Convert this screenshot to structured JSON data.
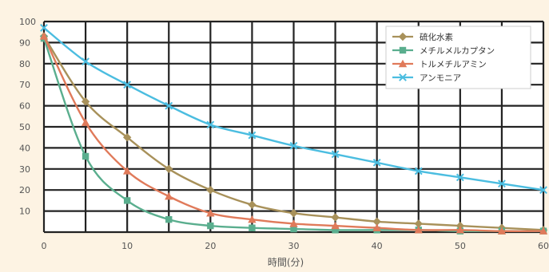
{
  "chart_data": {
    "type": "line",
    "title": "",
    "xlabel": "時間(分)",
    "ylabel": "",
    "xlim": [
      0,
      60
    ],
    "ylim": [
      0,
      100
    ],
    "xticks": [
      0,
      10,
      20,
      30,
      40,
      50,
      60
    ],
    "yticks": [
      10,
      20,
      30,
      40,
      50,
      60,
      70,
      80,
      90,
      100
    ],
    "xtick_labels": [
      "0",
      "10",
      "20",
      "30",
      "40",
      "50",
      "60"
    ],
    "ytick_labels": [
      "10",
      "20",
      "30",
      "40",
      "50",
      "60",
      "70",
      "80",
      "90",
      "100"
    ],
    "grid": true,
    "legend_position": "top-right",
    "x": [
      0,
      5,
      10,
      15,
      20,
      25,
      30,
      35,
      40,
      45,
      50,
      55,
      60
    ],
    "series": [
      {
        "name": "硫化水素",
        "color": "#a8915a",
        "marker": "diamond",
        "values": [
          93,
          62,
          45,
          30,
          20,
          13,
          9,
          7,
          5,
          4,
          3,
          2,
          1
        ]
      },
      {
        "name": "メチルメルカプタン",
        "color": "#5aae8e",
        "marker": "square",
        "values": [
          92,
          36,
          15,
          6,
          3,
          2,
          1.5,
          1,
          1,
          1,
          0.5,
          0.5,
          0.5
        ]
      },
      {
        "name": "トルメチルアミン",
        "color": "#e07a5a",
        "marker": "triangle",
        "values": [
          93,
          52,
          29,
          17,
          9,
          6,
          4,
          3,
          2,
          1,
          1,
          0.5,
          0.5
        ]
      },
      {
        "name": "アンモニア",
        "color": "#4bbde0",
        "marker": "cross",
        "values": [
          97,
          81,
          70,
          60,
          51,
          46,
          41,
          37,
          33,
          29,
          26,
          23,
          20
        ]
      }
    ]
  }
}
